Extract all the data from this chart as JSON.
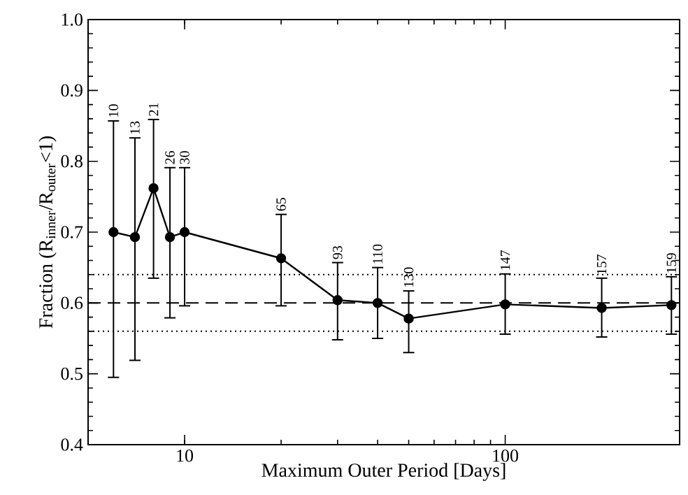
{
  "chart_data": {
    "type": "line",
    "xlabel": "Maximum Outer Period [Days]",
    "ylabel": "Fraction (R$_{inner}$/R$_{outer}$<1)",
    "x": [
      6,
      7,
      8,
      9,
      10,
      20,
      30,
      40,
      50,
      100,
      200,
      330
    ],
    "values": [
      0.7,
      0.693,
      0.762,
      0.693,
      0.7,
      0.663,
      0.604,
      0.6,
      0.578,
      0.598,
      0.593,
      0.597
    ],
    "errors": [
      [
        0.495,
        0.857
      ],
      [
        0.519,
        0.833
      ],
      [
        0.635,
        0.859
      ],
      [
        0.579,
        0.791
      ],
      [
        0.596,
        0.791
      ],
      [
        0.596,
        0.725
      ],
      [
        0.548,
        0.657
      ],
      [
        0.55,
        0.65
      ],
      [
        0.53,
        0.617
      ],
      [
        0.556,
        0.641
      ],
      [
        0.552,
        0.635
      ],
      [
        0.556,
        0.637
      ]
    ],
    "color": "#000000",
    "marker": "circle",
    "line_style": "solid",
    "log": "x",
    "xlim": [
      5,
      350
    ],
    "ylim": [
      0.4,
      1.0
    ],
    "xticks": [
      10,
      100
    ],
    "yticks": [
      0.4,
      0.5,
      0.6,
      0.7,
      0.8,
      0.9,
      {
        "value": 1,
        "label": "1.0"
      }
    ],
    "ref_lines": [
      {
        "axis": "y",
        "value": 0.6,
        "line_style": "dashed",
        "color": "#000000"
      },
      {
        "axis": "y",
        "value": 0.64,
        "line_style": "dotted",
        "color": "#000000"
      },
      {
        "axis": "y",
        "value": 0.56,
        "line_style": "dotted",
        "color": "#000000"
      }
    ],
    "annotations": [
      {
        "text": "10",
        "x": 6,
        "y": 0.857
      },
      {
        "text": "13",
        "x": 7,
        "y": 0.833
      },
      {
        "text": "21",
        "x": 8,
        "y": 0.859
      },
      {
        "text": "26",
        "x": 9,
        "y": 0.791
      },
      {
        "text": "30",
        "x": 10,
        "y": 0.791
      },
      {
        "text": "65",
        "x": 20,
        "y": 0.725
      },
      {
        "text": "93",
        "x": 30,
        "y": 0.657
      },
      {
        "text": "110",
        "x": 40,
        "y": 0.65
      },
      {
        "text": "130",
        "x": 50,
        "y": 0.617
      },
      {
        "text": "147",
        "x": 100,
        "y": 0.641
      },
      {
        "text": "157",
        "x": 200,
        "y": 0.635
      },
      {
        "text": "159",
        "x": 330,
        "y": 0.637
      }
    ]
  }
}
